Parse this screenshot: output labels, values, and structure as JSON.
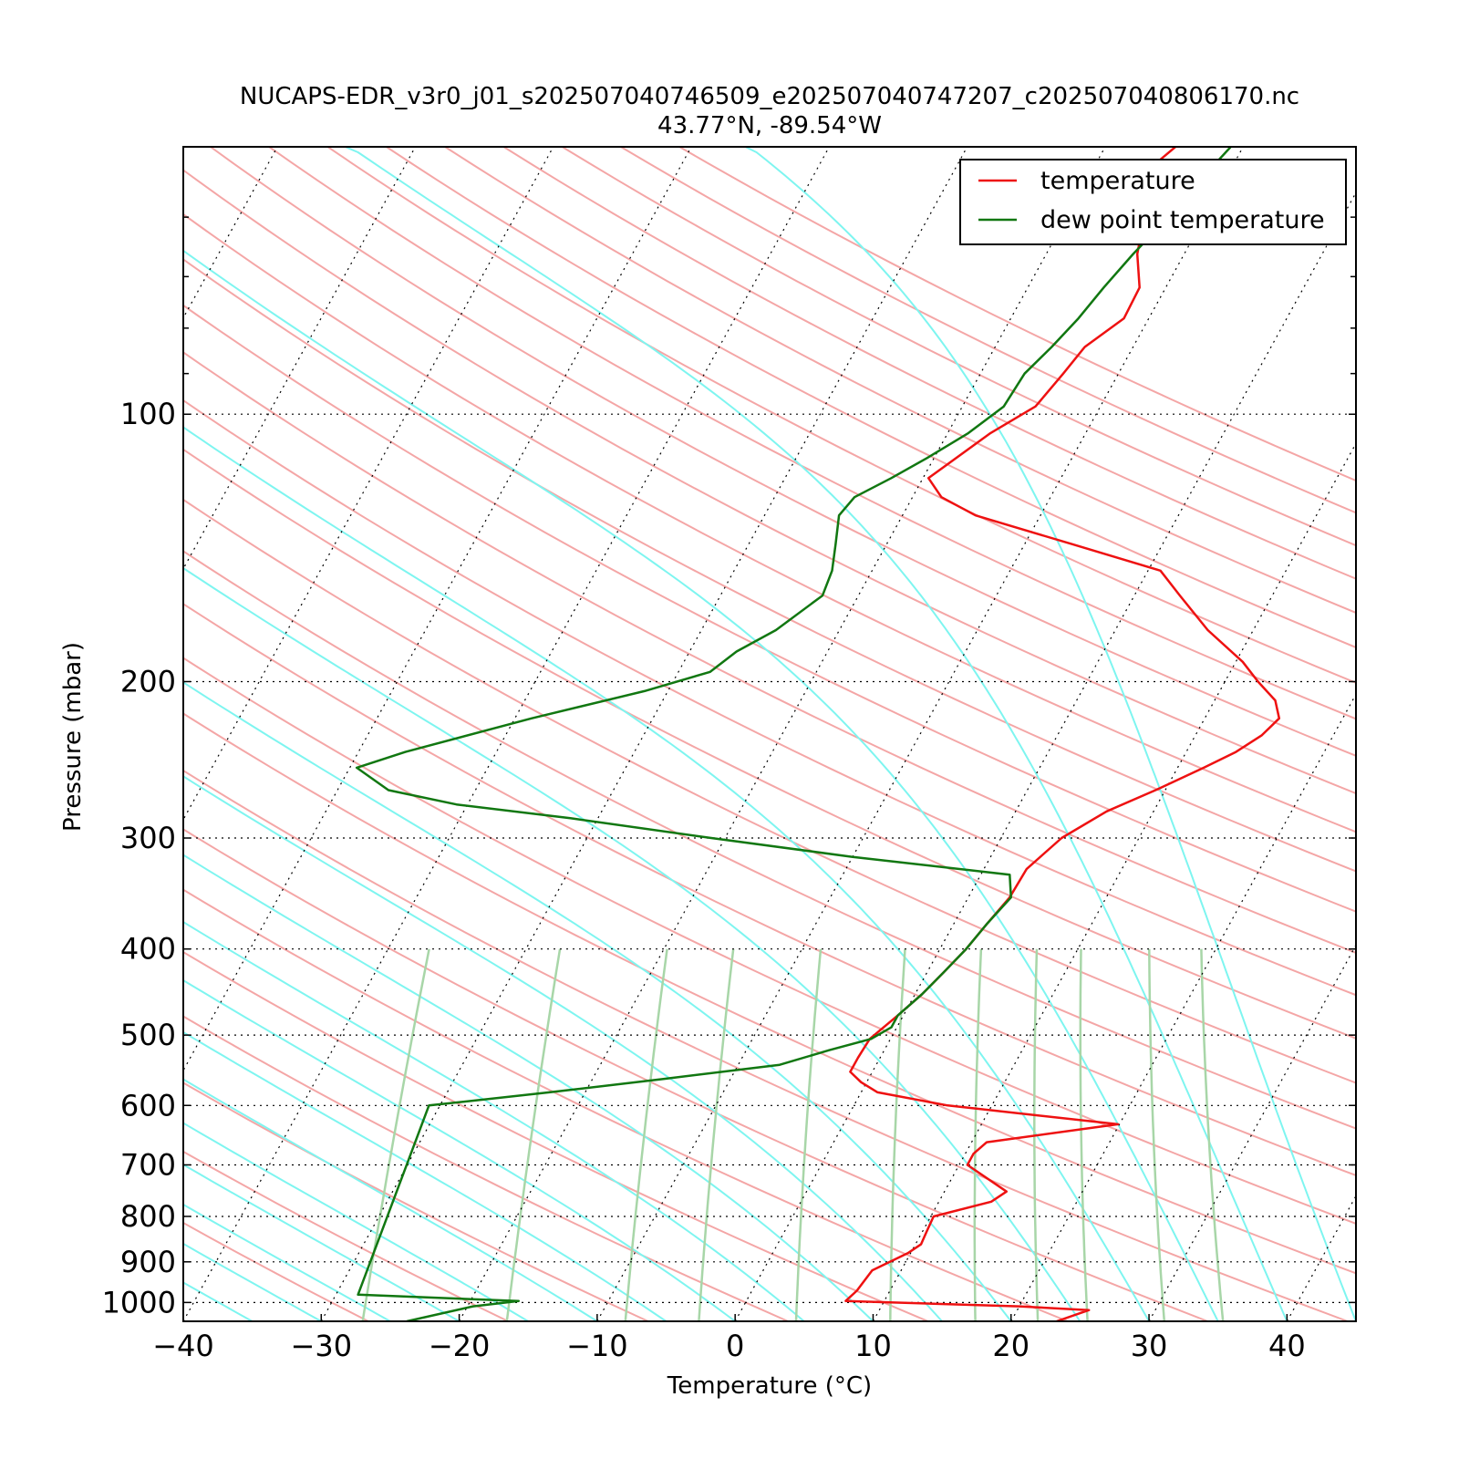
{
  "chart_data": {
    "type": "line",
    "subtype": "skew-T log-p diagram",
    "title": "NUCAPS-EDR_v3r0_j01_s202507040746509_e202507040747207_c202507040806170.nc",
    "subtitle": "43.77°N, -89.54°W",
    "xlabel": "Temperature (°C)",
    "ylabel": "Pressure (mbar)",
    "x_scale": "linear (skewed)",
    "y_scale": "log, inverted",
    "xlim": [
      -40,
      45
    ],
    "ylim": [
      1050,
      50
    ],
    "x_ticks": [
      -40,
      -30,
      -20,
      -10,
      0,
      10,
      20,
      30,
      40
    ],
    "x_tick_labels": [
      "−40",
      "−30",
      "−20",
      "−10",
      "0",
      "10",
      "20",
      "30",
      "40"
    ],
    "y_ticks": [
      100,
      200,
      300,
      400,
      500,
      600,
      700,
      800,
      900,
      1000
    ],
    "y_tick_labels": [
      "100",
      "200",
      "300",
      "400",
      "500",
      "600",
      "700",
      "800",
      "900",
      "1000"
    ],
    "grid": "dotted isobars and isotherms",
    "background_lines": {
      "dry_adiabats_color": "#f4a6a6",
      "moist_adiabats_color": "#7ef5f0",
      "mixing_ratio_lines_color": "#a8d6a8"
    },
    "legend": {
      "placement": "top-right",
      "entries": [
        "temperature",
        "dew point temperature"
      ]
    },
    "series": [
      {
        "name": "temperature",
        "color": "#ee1111",
        "points": [
          {
            "p": 1050,
            "t": 23.3
          },
          {
            "p": 1020,
            "t": 25.2
          },
          {
            "p": 1010,
            "t": 20.0
          },
          {
            "p": 996,
            "t": 7.2
          },
          {
            "p": 970,
            "t": 7.6
          },
          {
            "p": 920,
            "t": 7.9
          },
          {
            "p": 880,
            "t": 9.8
          },
          {
            "p": 860,
            "t": 10.4
          },
          {
            "p": 830,
            "t": 10.3
          },
          {
            "p": 800,
            "t": 10.2
          },
          {
            "p": 770,
            "t": 13.8
          },
          {
            "p": 750,
            "t": 14.5
          },
          {
            "p": 700,
            "t": 10.6
          },
          {
            "p": 680,
            "t": 10.6
          },
          {
            "p": 660,
            "t": 11.1
          },
          {
            "p": 630,
            "t": 19.9
          },
          {
            "p": 600,
            "t": 6.8
          },
          {
            "p": 580,
            "t": 1.2
          },
          {
            "p": 565,
            "t": -0.4
          },
          {
            "p": 550,
            "t": -1.6
          },
          {
            "p": 530,
            "t": -1.6
          },
          {
            "p": 505,
            "t": -1.5
          },
          {
            "p": 475,
            "t": -0.4
          },
          {
            "p": 450,
            "t": 0.5
          },
          {
            "p": 425,
            "t": 1.2
          },
          {
            "p": 400,
            "t": 1.9
          },
          {
            "p": 375,
            "t": 2.4
          },
          {
            "p": 350,
            "t": 3.0
          },
          {
            "p": 325,
            "t": 3.1
          },
          {
            "p": 300,
            "t": 4.4
          },
          {
            "p": 280,
            "t": 6.6
          },
          {
            "p": 265,
            "t": 9.3
          },
          {
            "p": 250,
            "t": 11.9
          },
          {
            "p": 240,
            "t": 13.6
          },
          {
            "p": 230,
            "t": 14.8
          },
          {
            "p": 220,
            "t": 15.4
          },
          {
            "p": 210,
            "t": 14.4
          },
          {
            "p": 200,
            "t": 12.4
          },
          {
            "p": 190,
            "t": 10.5
          },
          {
            "p": 175,
            "t": 6.7
          },
          {
            "p": 160,
            "t": 3.3
          },
          {
            "p": 150,
            "t": 0.9
          },
          {
            "p": 140,
            "t": -6.6
          },
          {
            "p": 130,
            "t": -14.7
          },
          {
            "p": 124,
            "t": -17.9
          },
          {
            "p": 118,
            "t": -19.6
          },
          {
            "p": 105,
            "t": -16.9
          },
          {
            "p": 98,
            "t": -14.7
          },
          {
            "p": 90,
            "t": -14.0
          },
          {
            "p": 84,
            "t": -13.5
          },
          {
            "p": 78,
            "t": -11.8
          },
          {
            "p": 72,
            "t": -11.9
          },
          {
            "p": 66,
            "t": -13.4
          },
          {
            "p": 61,
            "t": -14.2
          },
          {
            "p": 56,
            "t": -15.1
          },
          {
            "p": 52,
            "t": -15.6
          },
          {
            "p": 50,
            "t": -14.9
          }
        ]
      },
      {
        "name": "dew point temperature",
        "color": "#117711",
        "points": [
          {
            "p": 1050,
            "t": -23.8
          },
          {
            "p": 1010,
            "t": -19.6
          },
          {
            "p": 996,
            "t": -16.5
          },
          {
            "p": 980,
            "t": -28.4
          },
          {
            "p": 600,
            "t": -30.8
          },
          {
            "p": 580,
            "t": -22.6
          },
          {
            "p": 560,
            "t": -14.8
          },
          {
            "p": 540,
            "t": -7.0
          },
          {
            "p": 520,
            "t": -4.0
          },
          {
            "p": 505,
            "t": -1.4
          },
          {
            "p": 490,
            "t": -0.4
          },
          {
            "p": 475,
            "t": -0.4
          },
          {
            "p": 450,
            "t": 0.5
          },
          {
            "p": 425,
            "t": 1.2
          },
          {
            "p": 400,
            "t": 1.9
          },
          {
            "p": 375,
            "t": 2.4
          },
          {
            "p": 350,
            "t": 3.1
          },
          {
            "p": 330,
            "t": 2.1
          },
          {
            "p": 315,
            "t": -10.0
          },
          {
            "p": 300,
            "t": -21.0
          },
          {
            "p": 285,
            "t": -32.0
          },
          {
            "p": 275,
            "t": -40.8
          },
          {
            "p": 265,
            "t": -46.3
          },
          {
            "p": 250,
            "t": -49.5
          },
          {
            "p": 240,
            "t": -46.6
          },
          {
            "p": 220,
            "t": -38.8
          },
          {
            "p": 205,
            "t": -31.7
          },
          {
            "p": 195,
            "t": -27.7
          },
          {
            "p": 185,
            "t": -26.6
          },
          {
            "p": 175,
            "t": -24.6
          },
          {
            "p": 160,
            "t": -22.6
          },
          {
            "p": 150,
            "t": -22.9
          },
          {
            "p": 140,
            "t": -23.7
          },
          {
            "p": 130,
            "t": -24.6
          },
          {
            "p": 124,
            "t": -24.2
          },
          {
            "p": 118,
            "t": -22.3
          },
          {
            "p": 112,
            "t": -20.5
          },
          {
            "p": 105,
            "t": -18.5
          },
          {
            "p": 98,
            "t": -17.0
          },
          {
            "p": 90,
            "t": -16.8
          },
          {
            "p": 84,
            "t": -15.9
          },
          {
            "p": 78,
            "t": -15.1
          },
          {
            "p": 72,
            "t": -14.5
          },
          {
            "p": 66,
            "t": -13.7
          },
          {
            "p": 61,
            "t": -12.8
          },
          {
            "p": 56,
            "t": -12.0
          },
          {
            "p": 52,
            "t": -11.3
          },
          {
            "p": 50,
            "t": -10.9
          }
        ]
      }
    ]
  }
}
